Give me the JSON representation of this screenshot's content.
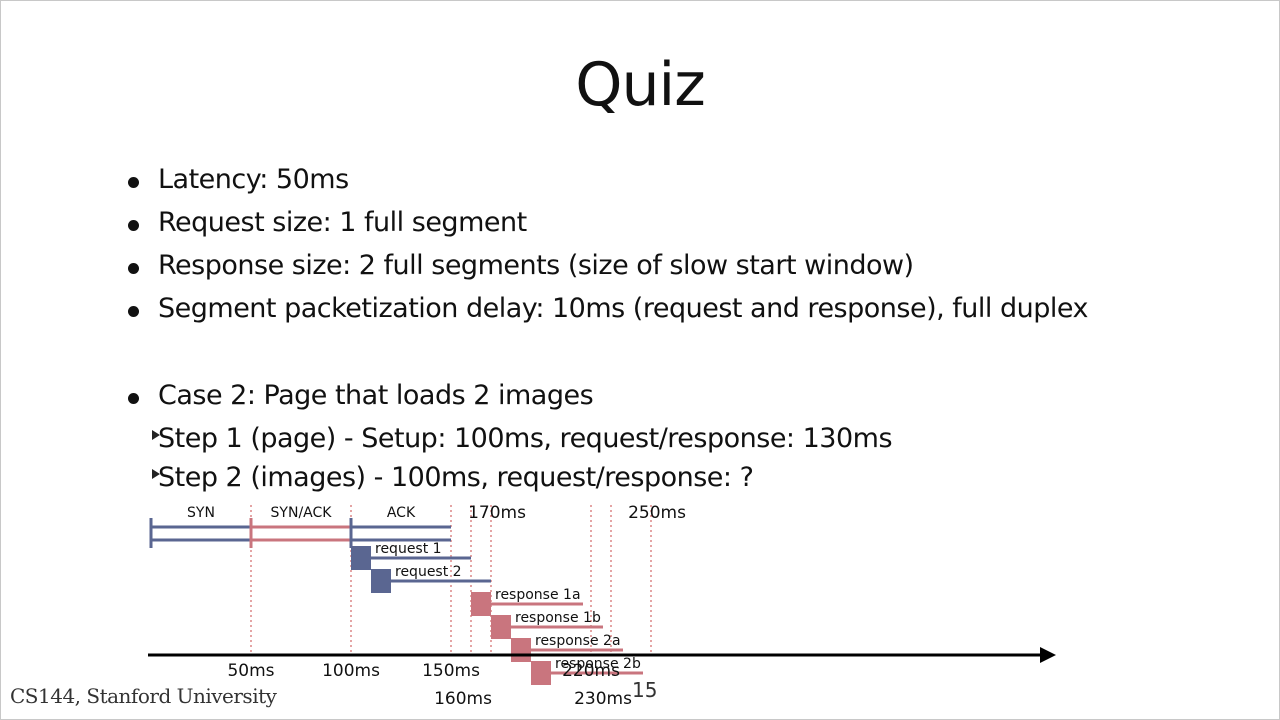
{
  "title": "Quiz",
  "bullets": [
    "Latency: 50ms",
    "Request size: 1 full segment",
    "Response size: 2 full segments (size of slow start window)",
    "Segment packetization delay: 10ms (request and response), full duplex"
  ],
  "case": {
    "label": "Case 2: Page that loads 2 images",
    "steps": [
      "Step 1 (page) -  Setup: 100ms, request/response: 130ms",
      "Step 2 (images) -  100ms, request/response: ?"
    ]
  },
  "diagram": {
    "colors": {
      "blue": "#5a6691",
      "red": "#c9757e",
      "guide": "#c94a4a",
      "axis": "#000000"
    },
    "handshake": [
      {
        "label": "SYN",
        "start_ms": 0,
        "end_ms": 50,
        "color": "blue"
      },
      {
        "label": "SYN/ACK",
        "start_ms": 50,
        "end_ms": 100,
        "color": "red"
      },
      {
        "label": "ACK",
        "start_ms": 100,
        "end_ms": 150,
        "color": "blue"
      }
    ],
    "segments": [
      {
        "label": "request 1",
        "start_ms": 100,
        "color": "blue"
      },
      {
        "label": "request 2",
        "start_ms": 110,
        "color": "blue"
      },
      {
        "label": "response 1a",
        "start_ms": 160,
        "color": "red"
      },
      {
        "label": "response 1b",
        "start_ms": 170,
        "color": "red"
      },
      {
        "label": "response 2a",
        "start_ms": 180,
        "color": "red"
      },
      {
        "label": "response 2b",
        "start_ms": 190,
        "color": "red"
      }
    ],
    "bottom_ticks": [
      "50ms",
      "100ms",
      "150ms",
      "160ms",
      "220ms",
      "230ms"
    ],
    "top_ticks": [
      "170ms",
      "250ms"
    ]
  },
  "footer": "CS144, Stanford University",
  "page_number": "15"
}
